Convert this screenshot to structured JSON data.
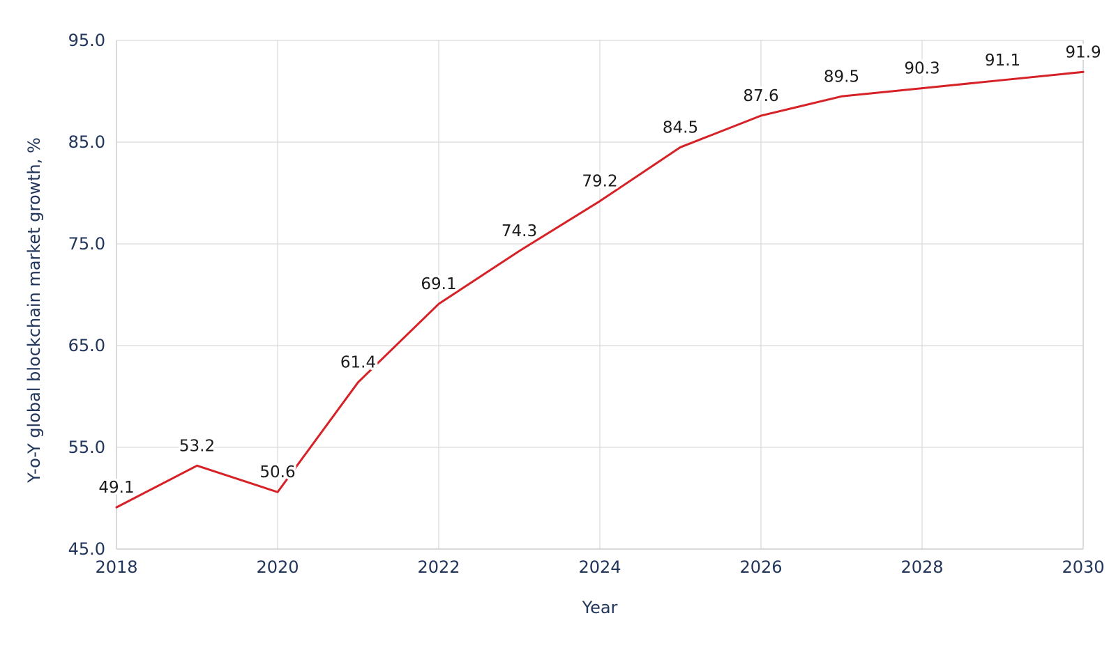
{
  "chart_data": {
    "type": "line",
    "title": "",
    "xlabel": "Year",
    "ylabel": "Y-o-Y global blockchain market growth, %",
    "x": [
      2018,
      2019,
      2020,
      2021,
      2022,
      2023,
      2024,
      2025,
      2026,
      2027,
      2028,
      2029,
      2030
    ],
    "series": [
      {
        "name": "Y-o-Y global blockchain market growth, %",
        "values": [
          49.1,
          53.2,
          50.6,
          61.4,
          69.1,
          74.3,
          79.2,
          84.5,
          87.6,
          89.5,
          90.3,
          91.1,
          91.9
        ],
        "color": "#d62127"
      }
    ],
    "data_labels": [
      "49.1",
      "53.2",
      "50.6",
      "61.4",
      "69.1",
      "74.3",
      "79.2",
      "84.5",
      "87.6",
      "89.5",
      "90.3",
      "91.1",
      "91.9"
    ],
    "xlim": [
      2018,
      2030
    ],
    "ylim": [
      45.0,
      95.0
    ],
    "x_ticks": [
      2018,
      2020,
      2022,
      2024,
      2026,
      2028,
      2030
    ],
    "x_tick_labels": [
      "2018",
      "2020",
      "2022",
      "2024",
      "2026",
      "2028",
      "2030"
    ],
    "y_ticks": [
      45.0,
      55.0,
      65.0,
      75.0,
      85.0,
      95.0
    ],
    "y_tick_labels": [
      "45.0",
      "55.0",
      "65.0",
      "75.0",
      "85.0",
      "95.0"
    ],
    "grid": true,
    "legend": "none",
    "markers": "none",
    "colors": {
      "line": "#d62127",
      "axis_text": "#22365c",
      "data_label_text": "#1b1b1b",
      "gridline": "#d9d9d9",
      "plot_border": "#cfcfcf",
      "background": "#ffffff"
    }
  }
}
